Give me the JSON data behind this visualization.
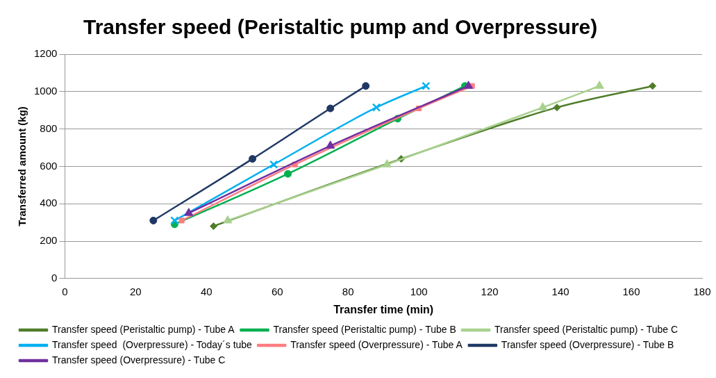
{
  "chart_data": {
    "type": "line",
    "title": "Transfer speed (Peristaltic pump and Overpressure)",
    "xlabel": "Transfer time (min)",
    "ylabel": "Transferred amount (kg)",
    "xlim": [
      0,
      180
    ],
    "xticks": [
      0,
      20,
      40,
      60,
      80,
      100,
      120,
      140,
      160,
      180
    ],
    "ylim": [
      0,
      1200
    ],
    "yticks": [
      0,
      200,
      400,
      600,
      800,
      1000,
      1200
    ],
    "grid": "y",
    "legend": "bottom",
    "series": [
      {
        "name": "Transfer speed (Peristaltic pump) - Tube A",
        "color": "#4f7d2b",
        "marker": "diamond",
        "x": [
          42,
          95,
          139,
          166
        ],
        "values": [
          280,
          640,
          915,
          1030
        ]
      },
      {
        "name": "Transfer speed (Peristaltic pump) - Tube B",
        "color": "#00b050",
        "marker": "circle",
        "x": [
          31,
          63,
          94,
          113
        ],
        "values": [
          290,
          560,
          855,
          1030
        ]
      },
      {
        "name": "Transfer speed (Peristaltic pump) - Tube C",
        "color": "#a9d18e",
        "marker": "triangle",
        "x": [
          46,
          91,
          135,
          151
        ],
        "values": [
          310,
          610,
          915,
          1030
        ]
      },
      {
        "name": "Transfer speed  (Overpressure) - Today´s tube",
        "color": "#00b0f0",
        "marker": "cross",
        "x": [
          31,
          59,
          88,
          102
        ],
        "values": [
          310,
          610,
          915,
          1030
        ]
      },
      {
        "name": "Transfer speed (Overpressure) - Tube A",
        "color": "#ff7c80",
        "marker": "square",
        "x": [
          33,
          65,
          100,
          115
        ],
        "values": [
          310,
          610,
          910,
          1030
        ]
      },
      {
        "name": "Transfer speed (Overpressure) - Tube B",
        "color": "#1f3864",
        "marker": "circle",
        "x": [
          25,
          53,
          75,
          85
        ],
        "values": [
          310,
          640,
          910,
          1030
        ]
      },
      {
        "name": "Transfer speed (Overpressure) - Tube C",
        "color": "#7030a0",
        "marker": "triangle",
        "x": [
          35,
          75,
          114
        ],
        "values": [
          350,
          710,
          1030
        ]
      }
    ]
  }
}
